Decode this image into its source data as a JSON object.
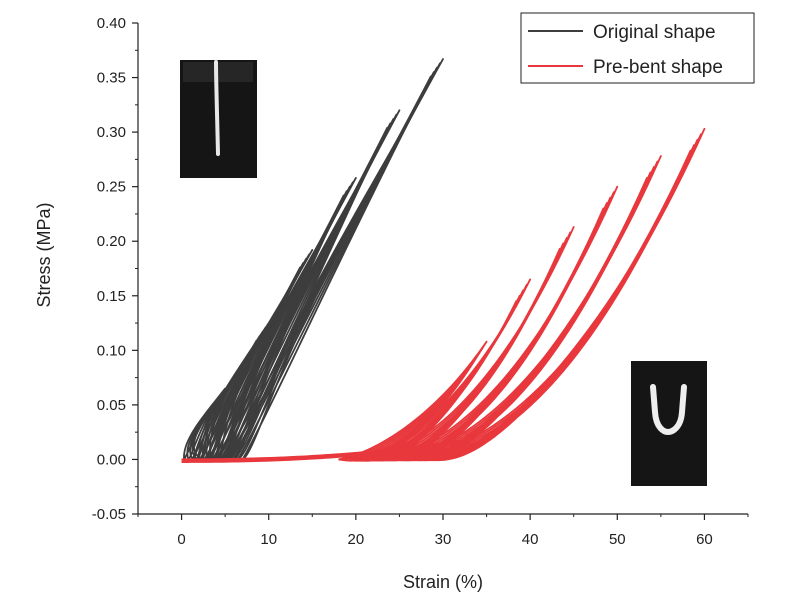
{
  "chart_data": {
    "type": "line",
    "title": "",
    "xlabel": "Strain (%)",
    "ylabel": "Stress (MPa)",
    "xlim": [
      -5,
      65
    ],
    "ylim": [
      -0.05,
      0.4
    ],
    "xticks": [
      0,
      10,
      20,
      30,
      40,
      50,
      60
    ],
    "xtick_labels": [
      "0",
      "10",
      "20",
      "30",
      "40",
      "50",
      "60"
    ],
    "yticks": [
      -0.05,
      0.0,
      0.05,
      0.1,
      0.15,
      0.2,
      0.25,
      0.3,
      0.35,
      0.4
    ],
    "ytick_labels": [
      "-0.05",
      "0.00",
      "0.05",
      "0.10",
      "0.15",
      "0.20",
      "0.25",
      "0.30",
      "0.35",
      "0.40"
    ],
    "grid": false,
    "legend_position": "top-right",
    "series": [
      {
        "name": "Original shape",
        "color": "#3d3d3d",
        "loops": [
          {
            "max_strain": 5,
            "peak_stress": 0.065,
            "cycles": 5
          },
          {
            "max_strain": 10,
            "peak_stress": 0.125,
            "cycles": 5
          },
          {
            "max_strain": 15,
            "peak_stress": 0.192,
            "cycles": 5
          },
          {
            "max_strain": 20,
            "peak_stress": 0.258,
            "cycles": 5
          },
          {
            "max_strain": 25,
            "peak_stress": 0.32,
            "cycles": 5
          },
          {
            "max_strain": 30,
            "peak_stress": 0.367,
            "cycles": 5
          }
        ]
      },
      {
        "name": "Pre-bent shape",
        "color": "#e8383d",
        "loops": [
          {
            "max_strain": 35,
            "peak_stress": 0.108,
            "cycles": 5
          },
          {
            "max_strain": 40,
            "peak_stress": 0.165,
            "cycles": 5
          },
          {
            "max_strain": 45,
            "peak_stress": 0.213,
            "cycles": 5
          },
          {
            "max_strain": 50,
            "peak_stress": 0.25,
            "cycles": 5
          },
          {
            "max_strain": 55,
            "peak_stress": 0.278,
            "cycles": 5
          },
          {
            "max_strain": 60,
            "peak_stress": 0.303,
            "cycles": 5
          }
        ]
      }
    ]
  },
  "legend": {
    "original": "Original shape",
    "prebent": "Pre-bent shape"
  },
  "insets": {
    "original_photo_icon": "straight-strip-photo-icon",
    "prebent_photo_icon": "u-shaped-strip-photo-icon"
  }
}
